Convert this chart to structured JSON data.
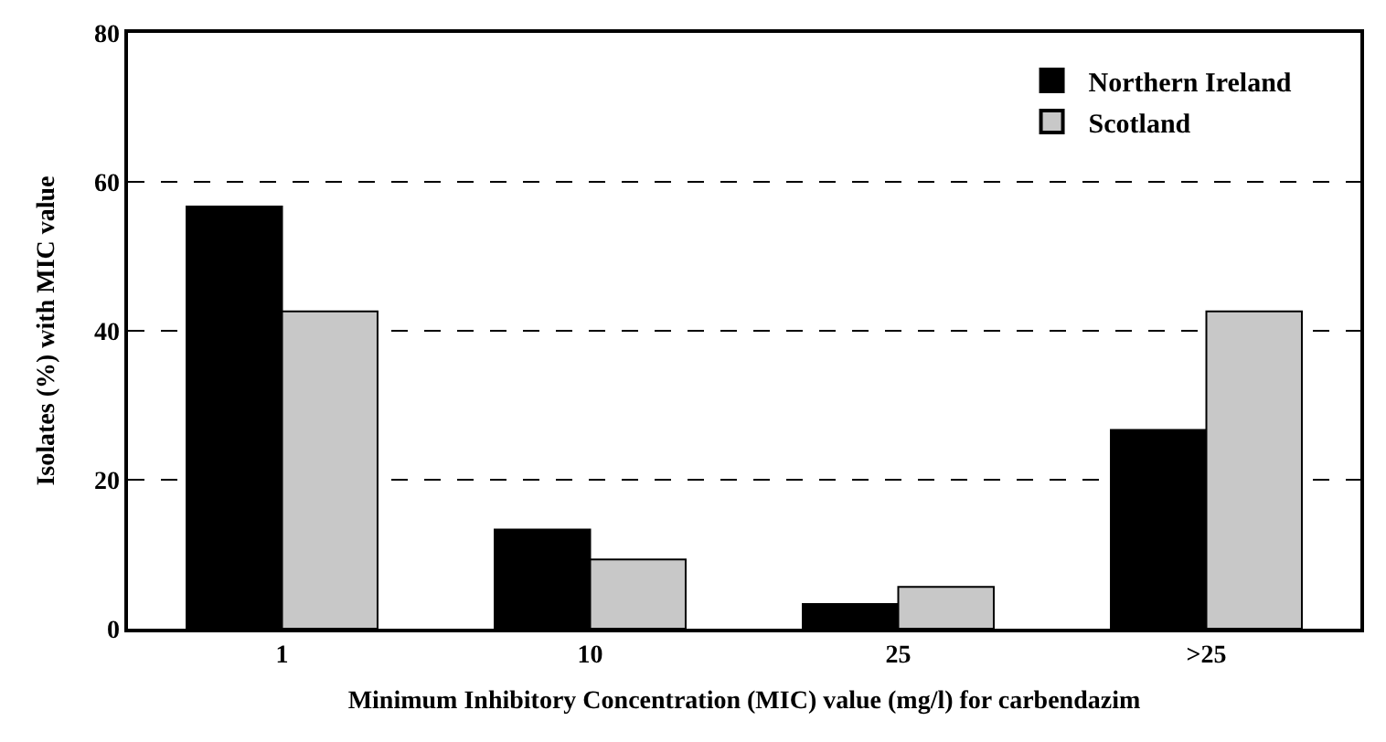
{
  "chart_data": {
    "type": "bar",
    "xlabel": "Minimum Inhibitory Concentration (MIC) value (mg/l) for carbendazim",
    "ylabel": "Isolates (%) with MIC value",
    "categories": [
      "1",
      "10",
      "25",
      ">25"
    ],
    "series": [
      {
        "name": "Northern Ireland",
        "color": "#000000",
        "values": [
          56.7,
          13.3,
          3.3,
          26.7
        ]
      },
      {
        "name": "Scotland",
        "color": "#c8c8c8",
        "values": [
          42.6,
          9.3,
          5.6,
          42.6
        ]
      }
    ],
    "ylim": [
      0,
      80
    ],
    "yticks": [
      0,
      20,
      40,
      60,
      80
    ],
    "grid": "y",
    "line_style": "dashed",
    "legend": "top right"
  }
}
